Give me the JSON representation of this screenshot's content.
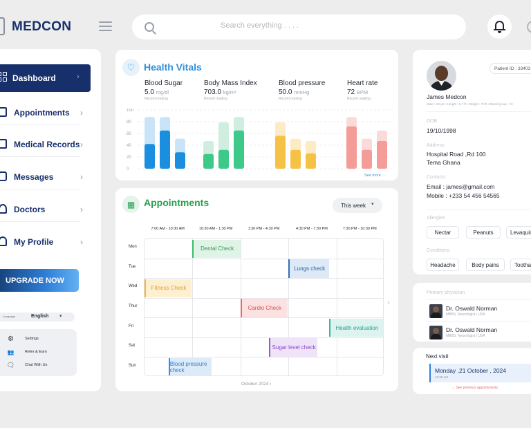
{
  "header": {
    "logo": "MEDCON",
    "search_placeholder": "Search everything . . . ."
  },
  "sidebar": {
    "items": [
      {
        "label": "Dashboard",
        "icon": "grid-icon",
        "active": true
      },
      {
        "label": "Appointments",
        "icon": "calendar-check-icon"
      },
      {
        "label": "Medical Records",
        "icon": "calendar-icon"
      },
      {
        "label": "Messages",
        "icon": "message-icon"
      },
      {
        "label": "Doctors",
        "icon": "doctor-icon"
      },
      {
        "label": "My Profile",
        "icon": "user-icon"
      }
    ],
    "upgrade_label": "UPGRADE NOW",
    "language_small": "Language",
    "language": "English",
    "utilities": [
      {
        "label": "Settings",
        "icon": "gear-icon"
      },
      {
        "label": "Refer & Earn",
        "icon": "people-icon"
      },
      {
        "label": "Chat With Us",
        "icon": "chat-icon"
      }
    ]
  },
  "vitals": {
    "title": "Health Vitals",
    "metrics": [
      {
        "name": "Blood Sugar",
        "value": "5.0",
        "unit": "mg/dl",
        "note": "Recent reading"
      },
      {
        "name": "Body Mass Index",
        "value": "703.0",
        "unit": "kg/m²",
        "note": "Recent reading"
      },
      {
        "name": "Blood pressure",
        "value": "50.0",
        "unit": "mmHg",
        "note": "Recent reading"
      },
      {
        "name": "Heart rate",
        "value": "72",
        "unit": "BPM",
        "note": "Recent reading"
      }
    ],
    "see_more": "See more →"
  },
  "chart_data": {
    "type": "bar",
    "yticks": [
      0,
      20,
      40,
      60,
      80,
      100
    ],
    "ylim": [
      0,
      100
    ],
    "grid": true,
    "groups": [
      {
        "name": "Blood Sugar",
        "color": "#1a8fe0",
        "light": "#c9e4f8",
        "values": [
          42,
          65,
          28
        ],
        "totals": [
          88,
          88,
          51
        ]
      },
      {
        "name": "Body Mass Index",
        "color": "#3dc987",
        "light": "#cfeedf",
        "values": [
          25,
          32,
          65
        ],
        "totals": [
          47,
          79,
          88
        ]
      },
      {
        "name": "Blood pressure",
        "color": "#f6c245",
        "light": "#fcebc3",
        "values": [
          56,
          32,
          26
        ],
        "totals": [
          79,
          51,
          47
        ]
      },
      {
        "name": "Heart rate",
        "color": "#f49c97",
        "light": "#fbdbd9",
        "values": [
          72,
          32,
          47
        ],
        "totals": [
          88,
          51,
          65
        ]
      }
    ]
  },
  "appointments": {
    "title": "Appointments",
    "range": "This week",
    "times": [
      "7:00 AM - 10:30 AM",
      "10:30 AM - 1:30 PM",
      "1:30 PM - 4:30 PM",
      "4:30 PM - 7:30 PM",
      "7:30 PM - 10:30 PM"
    ],
    "days": [
      "Mon",
      "Tue",
      "Wed",
      "Thur",
      "Fri",
      "Sat",
      "Sun"
    ],
    "events": [
      {
        "label": "Dental Check",
        "day": 0,
        "start": 1.0,
        "end": 2.0,
        "color": "#3dbb6a",
        "bg": "#dff3e6",
        "fg": "#2e9b55"
      },
      {
        "label": "Lungs check",
        "day": 1,
        "start": 3.0,
        "end": 3.85,
        "color": "#2f6fb5",
        "bg": "#dde9f7",
        "fg": "#2f5f9e"
      },
      {
        "label": "Fitness Check",
        "day": 2,
        "start": 0.0,
        "end": 0.98,
        "color": "#f1b73b",
        "bg": "#fdefcf",
        "fg": "#e0a22a"
      },
      {
        "label": "Cardio Check",
        "day": 3,
        "start": 2.0,
        "end": 2.98,
        "color": "#e66a6a",
        "bg": "#fbe1e1",
        "fg": "#d9534f"
      },
      {
        "label": "Health evaluation",
        "day": 4,
        "start": 3.85,
        "end": 4.98,
        "color": "#3ab3a5",
        "bg": "#dcf3ef",
        "fg": "#2e9e92"
      },
      {
        "label": "Sugar level check",
        "day": 5,
        "start": 2.6,
        "end": 3.6,
        "color": "#9b59d0",
        "bg": "#efe3f8",
        "fg": "#8a45c2"
      },
      {
        "label": "Blood pressure check",
        "day": 6,
        "start": 0.5,
        "end": 1.4,
        "color": "#3a8fe0",
        "bg": "#ddebf9",
        "fg": "#2f7fd0"
      }
    ],
    "month": "October 2024  ›"
  },
  "patient": {
    "id": "Patient ID : 33403",
    "name": "James Medcon",
    "meta": "Male  •  29 yrs  •  Height : 5.7 ft  •  Weight : 70 ft  •  Blood group : O+",
    "dob_label": "DOB",
    "dob": "19/10/1998",
    "address_label": "Address",
    "address_line1": "Hospital Road ,Rd 100",
    "address_line2": "Tema Ghana",
    "contacts_label": "Contacts",
    "email": "Email : james@gmail.com",
    "mobile": "Mobile : +233 54 456 54565",
    "allergies_label": "Allergies",
    "allergies": [
      "Nectar",
      "Peanuts",
      "Levaquin"
    ],
    "conditions_label": "Conditions",
    "conditions": [
      "Headache",
      "Body pains",
      "Toothache"
    ]
  },
  "physician": {
    "label": "Primary physician",
    "doctors": [
      {
        "name": "Dr. Oswald Norman",
        "spec": "MBBS, Neurologist | USA"
      },
      {
        "name": "Dr. Oswald Norman",
        "spec": "MBBS, Neurologist | USA"
      }
    ]
  },
  "next_visit": {
    "label": "Next visit",
    "date": "Monday ,21 October , 2024",
    "time": "10:30 AM",
    "previous": "← See previous appointments"
  }
}
